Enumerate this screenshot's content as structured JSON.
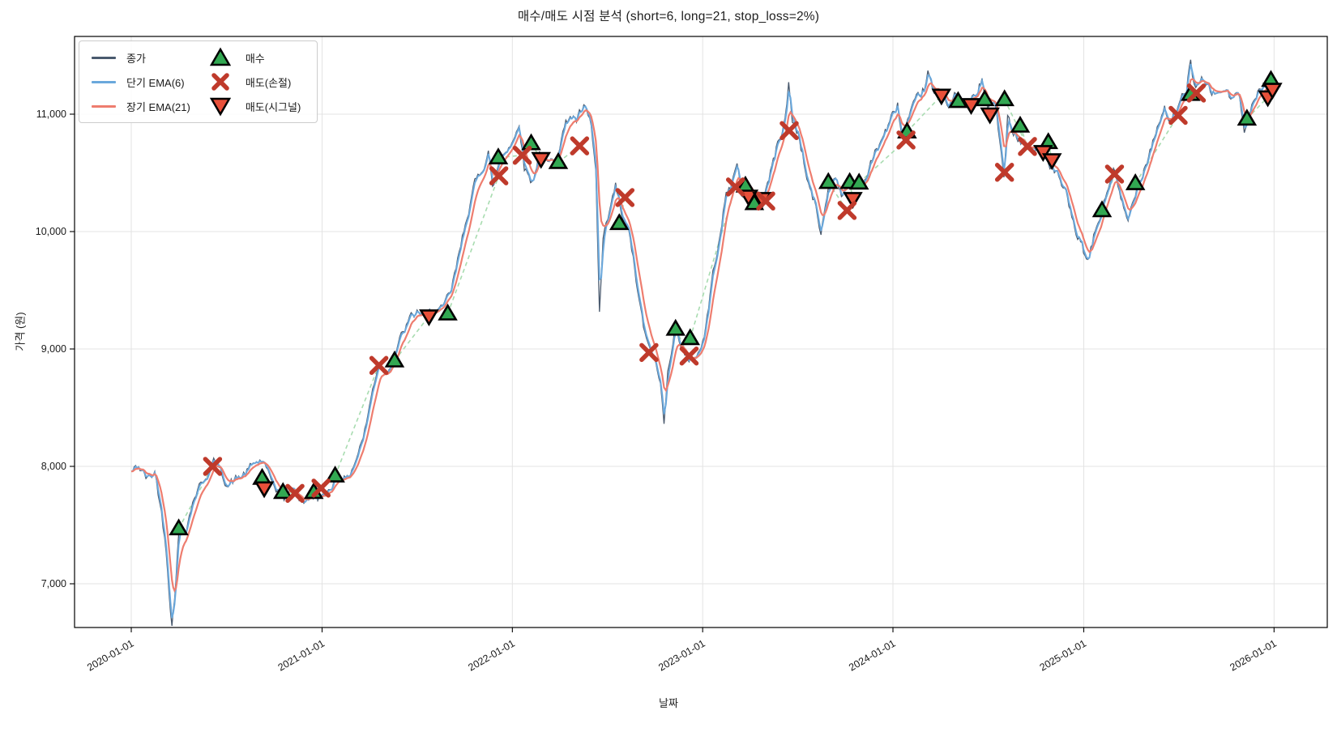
{
  "title": "매수/매도 시점 분석 (short=6, long=21, stop_loss=2%)",
  "chart_data": {
    "type": "line",
    "title": "매수/매도 시점 분석 (short=6, long=21, stop_loss=2%)",
    "xlabel": "날짜",
    "ylabel": "가격 (원)",
    "grid": true,
    "legend_position": "upper left",
    "x_ticks": [
      "2020-01-01",
      "2021-01-01",
      "2022-01-01",
      "2023-01-01",
      "2024-01-01",
      "2025-01-01",
      "2026-01-01"
    ],
    "y_ticks": [
      7000,
      8000,
      9000,
      10000,
      11000
    ],
    "y_tick_labels": [
      "7,000",
      "8,000",
      "9,000",
      "10,000",
      "11,000"
    ],
    "ylim": [
      6600,
      11700
    ],
    "params": {
      "short_ema_span": 6,
      "long_ema_span": 21,
      "stop_loss_pct": 2
    },
    "colors": {
      "close": "#4a5a6e",
      "ema_short": "#6aa8dc",
      "ema_long": "#ee7d6f",
      "buy": "#32a852",
      "sell_stop": "#bf3a2b",
      "sell_signal": "#e8503a",
      "marker_edge": "#000000",
      "trade_line": "#a8dcb0",
      "grid": "#e3e3e3"
    },
    "legend": [
      {
        "id": "close",
        "label": "종가"
      },
      {
        "id": "ema_short",
        "label": "단기 EMA(6)"
      },
      {
        "id": "ema_long",
        "label": "장기 EMA(21)"
      },
      {
        "id": "buy",
        "label": "매수"
      },
      {
        "id": "sell_stop",
        "label": "매도(손절)"
      },
      {
        "id": "sell_signal",
        "label": "매도(시그널)"
      }
    ],
    "close_keypoints": [
      [
        "2020-01-01",
        7950
      ],
      [
        "2020-01-15",
        8000
      ],
      [
        "2020-02-01",
        7890
      ],
      [
        "2020-02-15",
        7950
      ],
      [
        "2020-02-25",
        7700
      ],
      [
        "2020-03-08",
        7300
      ],
      [
        "2020-03-19",
        6650
      ],
      [
        "2020-03-24",
        6900
      ],
      [
        "2020-04-01",
        7420
      ],
      [
        "2020-04-15",
        7480
      ],
      [
        "2020-05-01",
        7750
      ],
      [
        "2020-05-20",
        7900
      ],
      [
        "2020-06-10",
        8050
      ],
      [
        "2020-06-20",
        7950
      ],
      [
        "2020-07-05",
        7850
      ],
      [
        "2020-07-25",
        7900
      ],
      [
        "2020-08-10",
        7950
      ],
      [
        "2020-08-25",
        8030
      ],
      [
        "2020-09-10",
        8050
      ],
      [
        "2020-09-22",
        7880
      ],
      [
        "2020-10-08",
        7800
      ],
      [
        "2020-10-20",
        7720
      ],
      [
        "2020-11-03",
        7820
      ],
      [
        "2020-11-18",
        7740
      ],
      [
        "2020-12-03",
        7700
      ],
      [
        "2020-12-18",
        7760
      ],
      [
        "2021-01-04",
        7720
      ],
      [
        "2021-01-20",
        7850
      ],
      [
        "2021-02-04",
        7950
      ],
      [
        "2021-02-18",
        7880
      ],
      [
        "2021-03-08",
        8080
      ],
      [
        "2021-03-24",
        8300
      ],
      [
        "2021-04-08",
        8650
      ],
      [
        "2021-04-20",
        8900
      ],
      [
        "2021-05-04",
        8800
      ],
      [
        "2021-05-18",
        8950
      ],
      [
        "2021-06-02",
        9100
      ],
      [
        "2021-06-18",
        9250
      ],
      [
        "2021-07-05",
        9320
      ],
      [
        "2021-07-20",
        9260
      ],
      [
        "2021-08-05",
        9350
      ],
      [
        "2021-08-20",
        9320
      ],
      [
        "2021-09-06",
        9500
      ],
      [
        "2021-09-21",
        9800
      ],
      [
        "2021-10-06",
        10150
      ],
      [
        "2021-10-21",
        10400
      ],
      [
        "2021-11-05",
        10550
      ],
      [
        "2021-11-16",
        10700
      ],
      [
        "2021-11-24",
        10350
      ],
      [
        "2021-12-08",
        10620
      ],
      [
        "2021-12-22",
        10720
      ],
      [
        "2022-01-06",
        10800
      ],
      [
        "2022-01-14",
        10950
      ],
      [
        "2022-01-24",
        10550
      ],
      [
        "2022-02-08",
        10420
      ],
      [
        "2022-02-22",
        10680
      ],
      [
        "2022-03-10",
        10560
      ],
      [
        "2022-03-24",
        10620
      ],
      [
        "2022-04-08",
        10850
      ],
      [
        "2022-04-22",
        11000
      ],
      [
        "2022-05-04",
        10950
      ],
      [
        "2022-05-18",
        11050
      ],
      [
        "2022-06-01",
        10900
      ],
      [
        "2022-06-10",
        10500
      ],
      [
        "2022-06-17",
        9300
      ],
      [
        "2022-06-24",
        9900
      ],
      [
        "2022-07-06",
        10150
      ],
      [
        "2022-07-18",
        10380
      ],
      [
        "2022-08-01",
        10100
      ],
      [
        "2022-08-15",
        9950
      ],
      [
        "2022-09-01",
        9400
      ],
      [
        "2022-09-15",
        9050
      ],
      [
        "2022-09-28",
        8950
      ],
      [
        "2022-10-12",
        8700
      ],
      [
        "2022-10-19",
        8350
      ],
      [
        "2022-10-26",
        8850
      ],
      [
        "2022-11-08",
        9150
      ],
      [
        "2022-11-22",
        9050
      ],
      [
        "2022-12-06",
        8850
      ],
      [
        "2022-12-20",
        8950
      ],
      [
        "2023-01-04",
        9100
      ],
      [
        "2023-01-18",
        9550
      ],
      [
        "2023-02-01",
        9950
      ],
      [
        "2023-02-15",
        10300
      ],
      [
        "2023-03-01",
        10450
      ],
      [
        "2023-03-08",
        10600
      ],
      [
        "2023-03-16",
        10330
      ],
      [
        "2023-03-30",
        10380
      ],
      [
        "2023-04-13",
        10230
      ],
      [
        "2023-04-27",
        10280
      ],
      [
        "2023-05-11",
        10500
      ],
      [
        "2023-05-25",
        10750
      ],
      [
        "2023-06-08",
        10950
      ],
      [
        "2023-06-15",
        11250
      ],
      [
        "2023-06-22",
        10950
      ],
      [
        "2023-07-06",
        10800
      ],
      [
        "2023-07-20",
        10450
      ],
      [
        "2023-08-03",
        10250
      ],
      [
        "2023-08-16",
        9980
      ],
      [
        "2023-08-30",
        10380
      ],
      [
        "2023-09-13",
        10480
      ],
      [
        "2023-09-27",
        10300
      ],
      [
        "2023-10-11",
        10420
      ],
      [
        "2023-10-25",
        10380
      ],
      [
        "2023-11-08",
        10450
      ],
      [
        "2023-11-22",
        10600
      ],
      [
        "2023-12-06",
        10750
      ],
      [
        "2023-12-20",
        10880
      ],
      [
        "2024-01-03",
        11000
      ],
      [
        "2024-01-10",
        11080
      ],
      [
        "2024-01-18",
        10820
      ],
      [
        "2024-02-01",
        10950
      ],
      [
        "2024-02-15",
        11100
      ],
      [
        "2024-03-01",
        11220
      ],
      [
        "2024-03-08",
        11350
      ],
      [
        "2024-03-20",
        11150
      ],
      [
        "2024-04-03",
        11200
      ],
      [
        "2024-04-17",
        11100
      ],
      [
        "2024-05-01",
        11160
      ],
      [
        "2024-05-15",
        11060
      ],
      [
        "2024-05-29",
        11120
      ],
      [
        "2024-06-12",
        11180
      ],
      [
        "2024-06-20",
        11300
      ],
      [
        "2024-07-01",
        11050
      ],
      [
        "2024-07-15",
        11100
      ],
      [
        "2024-08-01",
        10450
      ],
      [
        "2024-08-08",
        10950
      ],
      [
        "2024-08-22",
        10850
      ],
      [
        "2024-09-05",
        10780
      ],
      [
        "2024-09-19",
        10700
      ],
      [
        "2024-10-03",
        10720
      ],
      [
        "2024-10-17",
        10660
      ],
      [
        "2024-10-31",
        10550
      ],
      [
        "2024-11-14",
        10450
      ],
      [
        "2024-11-28",
        10300
      ],
      [
        "2024-12-12",
        10050
      ],
      [
        "2024-12-26",
        9900
      ],
      [
        "2025-01-09",
        9720
      ],
      [
        "2025-01-23",
        10000
      ],
      [
        "2025-02-06",
        10200
      ],
      [
        "2025-02-20",
        10420
      ],
      [
        "2025-02-27",
        10550
      ],
      [
        "2025-03-13",
        10250
      ],
      [
        "2025-03-27",
        10080
      ],
      [
        "2025-04-10",
        10350
      ],
      [
        "2025-04-24",
        10520
      ],
      [
        "2025-05-08",
        10700
      ],
      [
        "2025-05-22",
        10900
      ],
      [
        "2025-06-05",
        11050
      ],
      [
        "2025-06-19",
        10920
      ],
      [
        "2025-07-03",
        11080
      ],
      [
        "2025-07-17",
        11200
      ],
      [
        "2025-07-25",
        11480
      ],
      [
        "2025-08-01",
        11250
      ],
      [
        "2025-08-15",
        11280
      ],
      [
        "2025-08-29",
        11200
      ],
      [
        "2025-09-12",
        11160
      ],
      [
        "2025-09-26",
        11220
      ],
      [
        "2025-10-10",
        11120
      ],
      [
        "2025-10-24",
        11180
      ],
      [
        "2025-11-05",
        10880
      ],
      [
        "2025-11-14",
        11050
      ],
      [
        "2025-11-28",
        11150
      ],
      [
        "2025-12-12",
        11230
      ],
      [
        "2025-12-26",
        11280
      ],
      [
        "2026-01-01",
        11230
      ]
    ],
    "signals": {
      "buy": [
        [
          "2020-04-01",
          7470
        ],
        [
          "2020-09-08",
          7900
        ],
        [
          "2020-10-18",
          7780
        ],
        [
          "2020-12-16",
          7780
        ],
        [
          "2021-01-26",
          7920
        ],
        [
          "2021-05-20",
          8900
        ],
        [
          "2021-08-30",
          9300
        ],
        [
          "2021-12-05",
          10630
        ],
        [
          "2022-02-06",
          10750
        ],
        [
          "2022-03-30",
          10590
        ],
        [
          "2022-07-25",
          10070
        ],
        [
          "2022-11-10",
          9170
        ],
        [
          "2022-12-08",
          9090
        ],
        [
          "2023-03-24",
          10390
        ],
        [
          "2023-04-10",
          10240
        ],
        [
          "2023-08-30",
          10420
        ],
        [
          "2023-10-10",
          10420
        ],
        [
          "2023-10-28",
          10415
        ],
        [
          "2024-01-28",
          10850
        ],
        [
          "2024-05-05",
          11110
        ],
        [
          "2024-06-25",
          11125
        ],
        [
          "2024-08-02",
          11125
        ],
        [
          "2024-09-01",
          10900
        ],
        [
          "2024-10-25",
          10760
        ],
        [
          "2025-02-05",
          10180
        ],
        [
          "2025-04-10",
          10410
        ],
        [
          "2025-07-25",
          11170
        ],
        [
          "2025-11-10",
          10960
        ],
        [
          "2025-12-26",
          11290
        ]
      ],
      "sell_stop": [
        [
          "2020-06-05",
          8000
        ],
        [
          "2020-11-10",
          7770
        ],
        [
          "2020-12-30",
          7815
        ],
        [
          "2021-04-20",
          8860
        ],
        [
          "2021-12-06",
          10475
        ],
        [
          "2022-01-20",
          10650
        ],
        [
          "2022-05-10",
          10730
        ],
        [
          "2022-08-05",
          10290
        ],
        [
          "2022-09-20",
          8970
        ],
        [
          "2022-12-06",
          8940
        ],
        [
          "2023-03-05",
          10380
        ],
        [
          "2023-05-02",
          10260
        ],
        [
          "2023-06-16",
          10860
        ],
        [
          "2023-10-05",
          10180
        ],
        [
          "2024-01-26",
          10780
        ],
        [
          "2024-08-02",
          10505
        ],
        [
          "2024-09-15",
          10725
        ],
        [
          "2025-03-01",
          10490
        ],
        [
          "2025-07-01",
          10990
        ],
        [
          "2025-08-05",
          11180
        ]
      ],
      "sell_signal": [
        [
          "2020-09-12",
          7815
        ],
        [
          "2021-07-25",
          9280
        ],
        [
          "2022-02-25",
          10620
        ],
        [
          "2023-03-30",
          10300
        ],
        [
          "2023-04-25",
          10280
        ],
        [
          "2023-10-16",
          10280
        ],
        [
          "2024-04-03",
          11160
        ],
        [
          "2024-05-30",
          11080
        ],
        [
          "2024-07-05",
          11000
        ],
        [
          "2024-10-15",
          10680
        ],
        [
          "2024-11-01",
          10610
        ],
        [
          "2025-12-20",
          11145
        ],
        [
          "2025-12-29",
          11210
        ]
      ]
    }
  }
}
